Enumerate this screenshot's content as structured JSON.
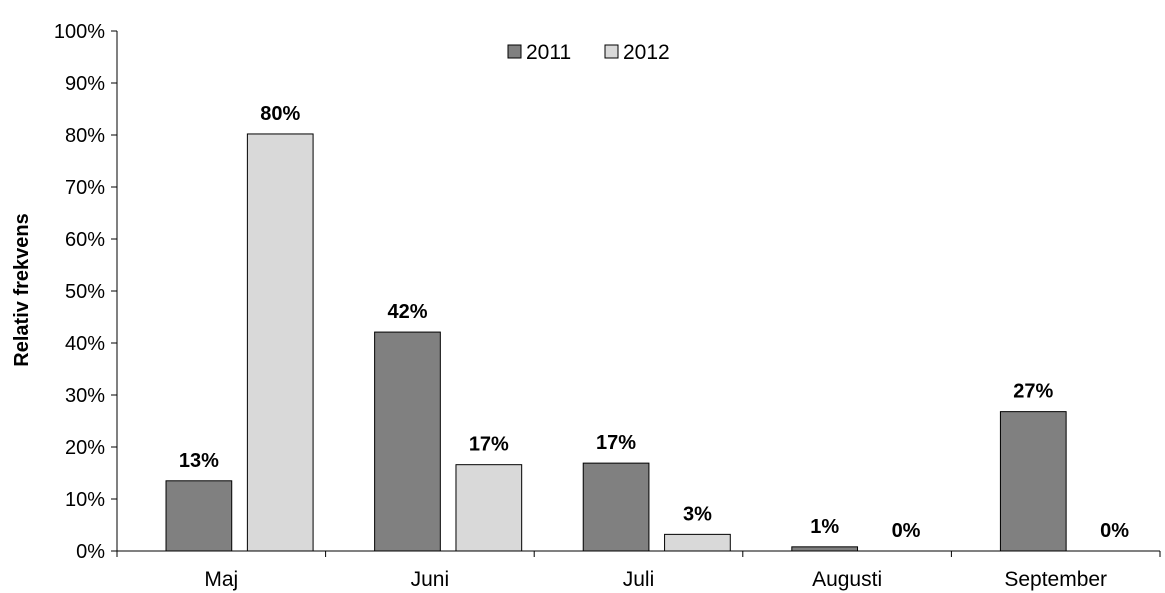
{
  "chart_data": {
    "type": "bar",
    "title": "",
    "xlabel": "",
    "ylabel": "Relativ frekvens",
    "ylim": [
      0,
      100
    ],
    "y_ticks": [
      "0%",
      "10%",
      "20%",
      "30%",
      "40%",
      "50%",
      "60%",
      "70%",
      "80%",
      "90%",
      "100%"
    ],
    "categories": [
      "Maj",
      "Juni",
      "Juli",
      "Augusti",
      "September"
    ],
    "series": [
      {
        "name": "2011",
        "color": "#808080",
        "values": [
          13.5,
          42.1,
          16.9,
          0.8,
          26.8
        ],
        "labels": [
          "13%",
          "42%",
          "17%",
          "1%",
          "27%"
        ]
      },
      {
        "name": "2012",
        "color": "#d9d9d9",
        "values": [
          80.2,
          16.6,
          3.2,
          0,
          0
        ],
        "labels": [
          "80%",
          "17%",
          "3%",
          "0%",
          "0%"
        ]
      }
    ],
    "legend_position": "top-center",
    "grid": false
  }
}
